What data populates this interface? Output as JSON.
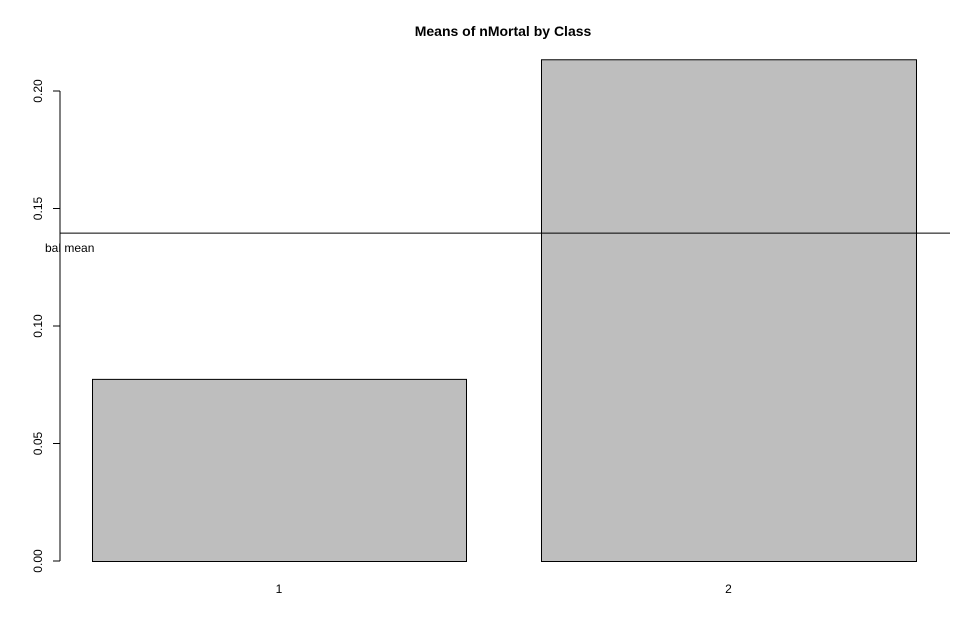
{
  "chart_data": {
    "type": "bar",
    "title": "Means of nMortal by Class",
    "xlabel": "",
    "ylabel": "",
    "categories": [
      "1",
      "2"
    ],
    "values": [
      0.0775,
      0.2135
    ],
    "ylim": [
      0,
      0.2135
    ],
    "yticks": [
      0.0,
      0.05,
      0.1,
      0.15,
      0.2
    ],
    "ytick_labels": [
      "0.00",
      "0.05",
      "0.10",
      "0.15",
      "0.20"
    ],
    "reference_line": {
      "value": 0.1395,
      "label": "Global mean",
      "visible_label": "bal mean"
    },
    "bar_color": "#bebebe",
    "grid": false
  }
}
